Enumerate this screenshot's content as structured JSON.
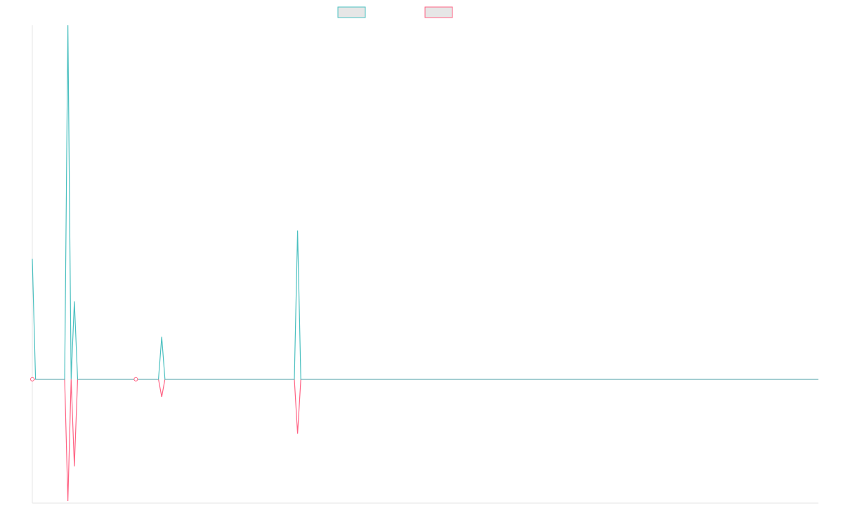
{
  "chart_data": {
    "type": "line",
    "title": "",
    "xlabel": "",
    "ylabel": "",
    "x_count": 244,
    "ylim": [
      -175,
      500
    ],
    "grid": false,
    "legend_position": "top-center",
    "colors": {
      "series_1": "#4bc0c0",
      "series_2": "#ff6384",
      "legend_fill": "#e6e6e6",
      "axis": "#e6e6e6"
    },
    "series": [
      {
        "points": [
          [
            0,
            170
          ],
          [
            1,
            0
          ],
          [
            11,
            500
          ],
          [
            12,
            0
          ],
          [
            13,
            110
          ],
          [
            14,
            0
          ],
          [
            40,
            60
          ],
          [
            41,
            0
          ],
          [
            82,
            210
          ],
          [
            83,
            0
          ]
        ]
      },
      {
        "points": [
          [
            0,
            0
          ],
          [
            11,
            -172
          ],
          [
            12,
            0
          ],
          [
            13,
            -123
          ],
          [
            14,
            0
          ],
          [
            40,
            -25
          ],
          [
            41,
            0
          ],
          [
            82,
            -77
          ],
          [
            83,
            0
          ]
        ]
      }
    ],
    "markers": [
      {
        "series": 1,
        "x": 0,
        "y": 0
      },
      {
        "series": 1,
        "x": 32,
        "y": 0
      }
    ]
  }
}
